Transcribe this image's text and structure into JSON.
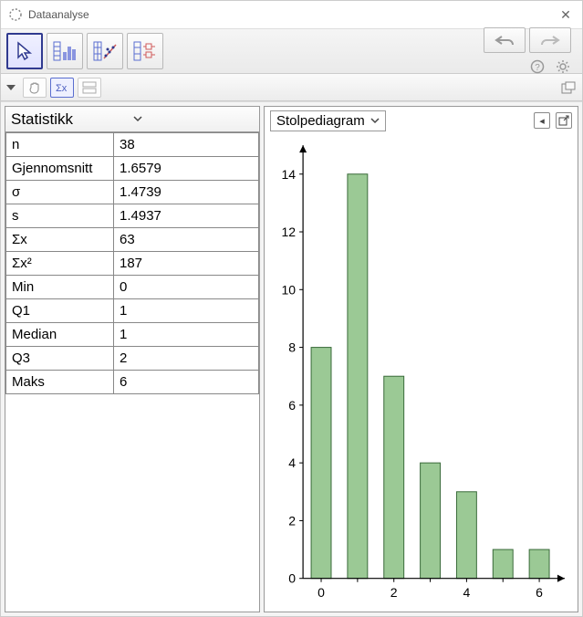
{
  "window": {
    "title": "Dataanalyse"
  },
  "toolbar": {
    "tools": [
      {
        "name": "pointer-tool",
        "selected": true
      },
      {
        "name": "one-var-tool",
        "selected": false
      },
      {
        "name": "two-var-tool",
        "selected": false
      },
      {
        "name": "boxplot-tool",
        "selected": false
      }
    ]
  },
  "stats": {
    "header": "Statistikk",
    "rows": [
      {
        "label": "n",
        "value": "38"
      },
      {
        "label": "Gjennomsnitt",
        "value": "1.6579"
      },
      {
        "label": "σ",
        "value": "1.4739"
      },
      {
        "label": "s",
        "value": "1.4937"
      },
      {
        "label": "Σx",
        "value": "63"
      },
      {
        "label": "Σx²",
        "value": "187"
      },
      {
        "label": "Min",
        "value": "0"
      },
      {
        "label": "Q1",
        "value": "1"
      },
      {
        "label": "Median",
        "value": "1"
      },
      {
        "label": "Q3",
        "value": "2"
      },
      {
        "label": "Maks",
        "value": "6"
      }
    ]
  },
  "chart": {
    "select_label": "Stolpediagram",
    "type": "bar",
    "categories": [
      0,
      1,
      2,
      3,
      4,
      5,
      6
    ],
    "values": [
      8,
      14,
      7,
      4,
      3,
      1,
      1
    ],
    "bar_fill": "#9bc995",
    "bar_stroke": "#3a6b3a",
    "bar_width_ratio": 0.55,
    "y_ticks": [
      0,
      2,
      4,
      6,
      8,
      10,
      12,
      14
    ],
    "x_tick_labels": [
      0,
      2,
      4,
      6
    ],
    "ylim": [
      0,
      15
    ],
    "xlim": [
      -0.5,
      6.7
    ],
    "background": "#ffffff",
    "axis_color": "#000000",
    "label_fontsize": 14
  }
}
